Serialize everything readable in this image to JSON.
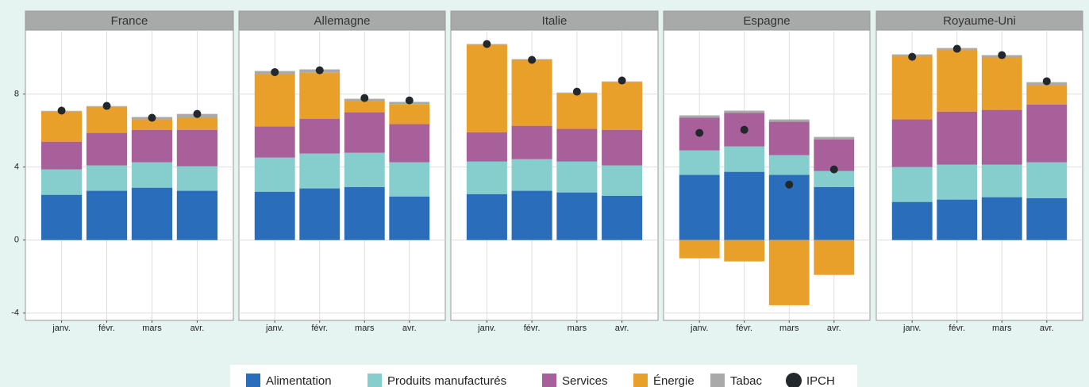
{
  "chart_data": {
    "type": "bar",
    "stacked": true,
    "grid": true,
    "categories": [
      "janv.",
      "févr.",
      "mars",
      "avr."
    ],
    "ylim": [
      -4.4,
      11.5
    ],
    "yticks": [
      -4,
      0,
      4,
      8
    ],
    "series": [
      {
        "name": "Alimentation",
        "color": "#2a6ebb"
      },
      {
        "name": "Produits manufacturés",
        "color": "#86cecd"
      },
      {
        "name": "Services",
        "color": "#a8609a"
      },
      {
        "name": "Énergie",
        "color": "#e8a02a"
      },
      {
        "name": "Tabac",
        "color": "#a8a9a8"
      }
    ],
    "point_series": {
      "name": "IPCH",
      "color": "#23282c"
    },
    "panels": [
      {
        "title": "France",
        "series": [
          [
            2.48,
            2.7,
            2.87,
            2.7
          ],
          [
            1.39,
            1.39,
            1.39,
            1.34
          ],
          [
            1.52,
            1.78,
            1.78,
            2.0
          ],
          [
            1.65,
            1.43,
            0.57,
            0.66
          ],
          [
            0.04,
            0.04,
            0.13,
            0.21
          ]
        ],
        "points": [
          7.09,
          7.35,
          6.7,
          6.91
        ]
      },
      {
        "title": "Allemagne",
        "series": [
          [
            2.65,
            2.83,
            2.91,
            2.39
          ],
          [
            1.87,
            1.91,
            1.87,
            1.87
          ],
          [
            1.7,
            1.91,
            2.22,
            2.09
          ],
          [
            2.87,
            2.52,
            0.61,
            1.08
          ],
          [
            0.17,
            0.18,
            0.13,
            0.14
          ]
        ],
        "points": [
          9.2,
          9.3,
          7.78,
          7.65
        ]
      },
      {
        "title": "Italie",
        "series": [
          [
            2.52,
            2.7,
            2.61,
            2.43
          ],
          [
            1.78,
            1.73,
            1.69,
            1.66
          ],
          [
            1.61,
            1.83,
            1.79,
            1.95
          ],
          [
            4.79,
            3.61,
            1.95,
            2.61
          ],
          [
            0.04,
            0.04,
            0.04,
            0.04
          ]
        ],
        "points": [
          10.74,
          9.87,
          8.13,
          8.74
        ]
      },
      {
        "title": "Espagne",
        "series": [
          [
            3.57,
            3.74,
            3.57,
            2.91
          ],
          [
            1.34,
            1.39,
            1.08,
            0.87
          ],
          [
            1.79,
            1.83,
            1.83,
            1.74
          ],
          [
            -1.0,
            -1.17,
            -3.57,
            -1.91
          ],
          [
            0.13,
            0.13,
            0.13,
            0.13
          ]
        ],
        "points": [
          5.87,
          6.04,
          3.04,
          3.87
        ]
      },
      {
        "title": "Royaume-Uni",
        "series": [
          [
            2.09,
            2.22,
            2.35,
            2.3
          ],
          [
            1.91,
            1.91,
            1.78,
            1.96
          ],
          [
            2.61,
            2.91,
            3.0,
            3.17
          ],
          [
            3.48,
            3.39,
            2.87,
            1.05
          ],
          [
            0.08,
            0.09,
            0.13,
            0.17
          ]
        ],
        "points": [
          10.04,
          10.48,
          10.13,
          8.7
        ]
      }
    ]
  }
}
